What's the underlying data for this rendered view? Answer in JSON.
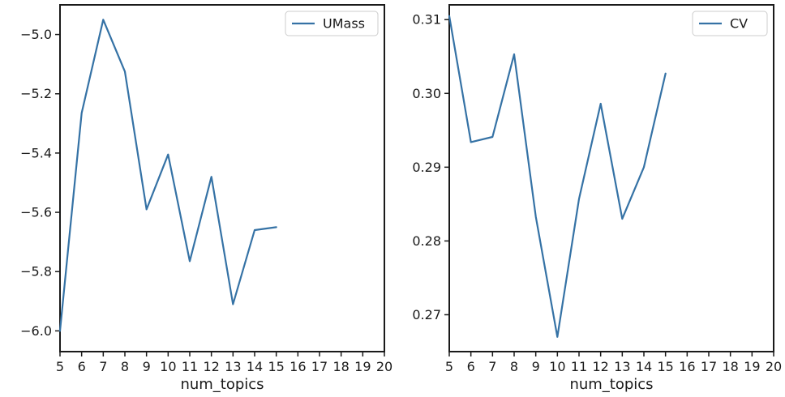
{
  "chart_data": [
    {
      "type": "line",
      "title": "",
      "xlabel": "num_topics",
      "ylabel": "",
      "xlim": [
        5,
        20
      ],
      "ylim": [
        -6.07,
        -4.9
      ],
      "xticks": [
        5,
        6,
        7,
        8,
        9,
        10,
        11,
        12,
        13,
        14,
        15,
        16,
        17,
        18,
        19,
        20
      ],
      "xtick_labels": [
        "5",
        "6",
        "7",
        "8",
        "9",
        "10",
        "11",
        "12",
        "13",
        "14",
        "15",
        "16",
        "17",
        "18",
        "19",
        "20"
      ],
      "yticks": [
        -6.0,
        -5.8,
        -5.6,
        -5.4,
        -5.2,
        -5.0
      ],
      "ytick_labels": [
        "−6.0",
        "−5.8",
        "−5.6",
        "−5.4",
        "−5.2",
        "−5.0"
      ],
      "legend_position": "top-right",
      "grid": false,
      "series": [
        {
          "name": "UMass",
          "color": "#3572a5",
          "x": [
            5,
            6,
            7,
            8,
            9,
            10,
            11,
            12,
            13,
            14,
            15
          ],
          "values": [
            -6.0,
            -5.265,
            -4.95,
            -5.125,
            -5.59,
            -5.405,
            -5.765,
            -5.48,
            -5.91,
            -5.66,
            -5.65
          ]
        }
      ]
    },
    {
      "type": "line",
      "title": "",
      "xlabel": "num_topics",
      "ylabel": "",
      "xlim": [
        5,
        20
      ],
      "ylim": [
        0.265,
        0.312
      ],
      "xticks": [
        5,
        6,
        7,
        8,
        9,
        10,
        11,
        12,
        13,
        14,
        15,
        16,
        17,
        18,
        19,
        20
      ],
      "xtick_labels": [
        "5",
        "6",
        "7",
        "8",
        "9",
        "10",
        "11",
        "12",
        "13",
        "14",
        "15",
        "16",
        "17",
        "18",
        "19",
        "20"
      ],
      "yticks": [
        0.27,
        0.28,
        0.29,
        0.3,
        0.31
      ],
      "ytick_labels": [
        "0.27",
        "0.28",
        "0.29",
        "0.30",
        "0.31"
      ],
      "legend_position": "top-right",
      "grid": false,
      "series": [
        {
          "name": "CV",
          "color": "#3572a5",
          "x": [
            5,
            6,
            7,
            8,
            9,
            10,
            11,
            12,
            13,
            14,
            15
          ],
          "values": [
            0.3105,
            0.2934,
            0.2941,
            0.3053,
            0.2833,
            0.267,
            0.2857,
            0.2986,
            0.283,
            0.29,
            0.3027
          ]
        }
      ]
    }
  ]
}
